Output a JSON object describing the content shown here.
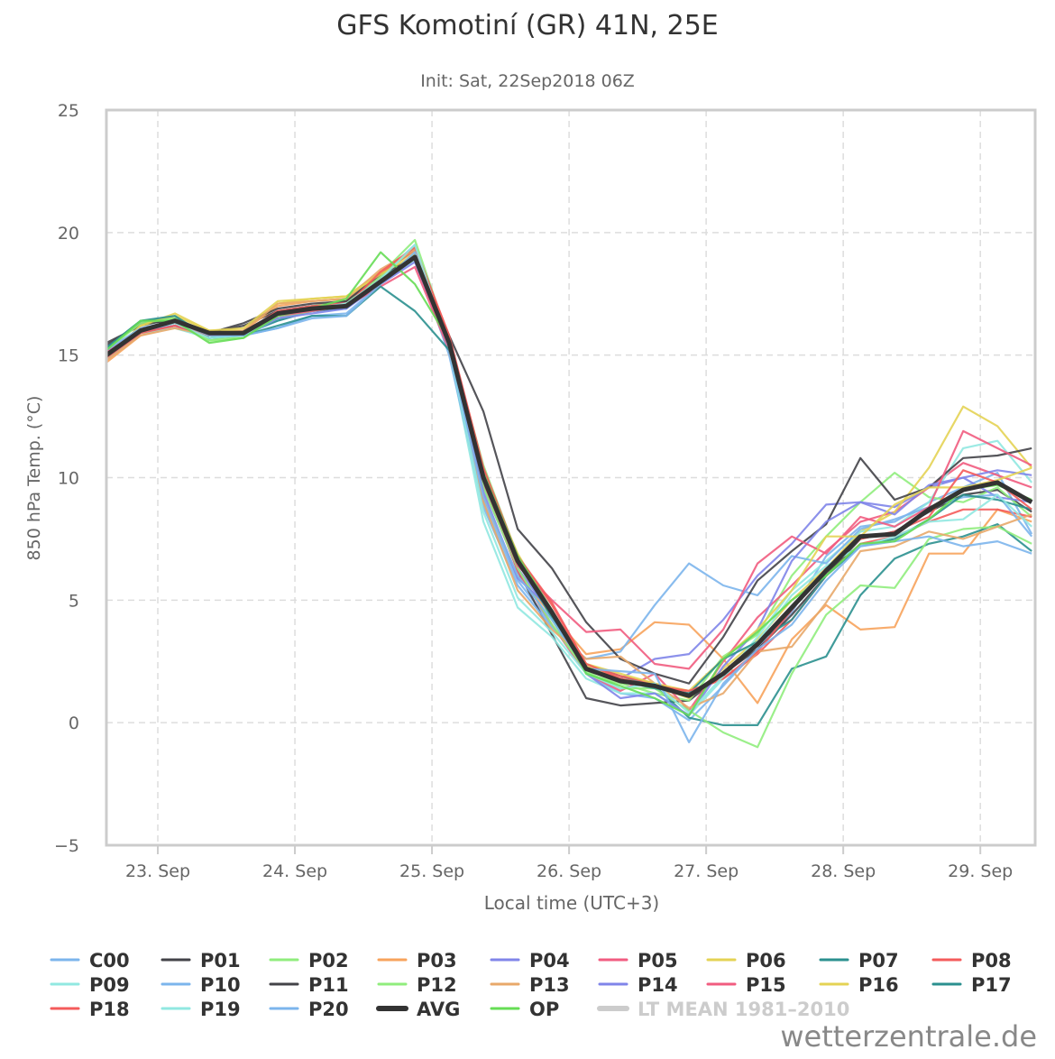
{
  "chart_data": {
    "type": "line",
    "title": "GFS Komotiní (GR) 41N, 25E",
    "subtitle": "Init: Sat, 22Sep2018 06Z",
    "xlabel": "Local time (UTC+3)",
    "ylabel": "850 hPa Temp. (°C)",
    "ylim": [
      -5,
      25
    ],
    "yticks": [
      -5,
      0,
      5,
      10,
      15,
      20,
      25
    ],
    "ytick_labels": [
      "−5",
      "0",
      "5",
      "10",
      "15",
      "20",
      "25"
    ],
    "x_unit": "hours since 23 Sep 00:00 local",
    "xlim": [
      -9,
      153.6
    ],
    "x_start": -9,
    "x_step": 6,
    "xticks": [
      0,
      24,
      48,
      72,
      96,
      120,
      144
    ],
    "xtick_labels": [
      "23. Sep",
      "24. Sep",
      "25. Sep",
      "26. Sep",
      "27. Sep",
      "28. Sep",
      "29. Sep"
    ],
    "grid": true,
    "legend_position": "bottom",
    "series": [
      {
        "name": "C00",
        "color": "#7cb5ec",
        "values": [
          14.8,
          15.9,
          16.2,
          15.7,
          15.8,
          16.4,
          16.8,
          16.9,
          18.2,
          19.5,
          15.4,
          9.0,
          5.8,
          4.0,
          2.0,
          1.2,
          1.0,
          0.1,
          1.5,
          3.0,
          4.5,
          6.8,
          8.0,
          8.2,
          9.0,
          9.6,
          10.2,
          7.7
        ]
      },
      {
        "name": "P01",
        "color": "#434348",
        "values": [
          15.5,
          16.2,
          16.5,
          15.9,
          16.2,
          16.8,
          17.0,
          17.1,
          18.1,
          19.1,
          15.7,
          9.8,
          6.2,
          3.6,
          1.0,
          0.7,
          0.8,
          0.9,
          2.0,
          3.0,
          4.4,
          6.0,
          7.5,
          7.8,
          8.6,
          9.3,
          9.5,
          8.6
        ]
      },
      {
        "name": "P02",
        "color": "#90ed7d",
        "values": [
          15.2,
          16.4,
          16.5,
          15.6,
          15.7,
          16.6,
          17.0,
          17.2,
          18.3,
          19.7,
          15.6,
          10.5,
          6.8,
          4.2,
          2.0,
          1.6,
          1.2,
          0.9,
          2.7,
          3.6,
          6.0,
          7.6,
          9.0,
          10.2,
          9.2,
          9.0,
          9.6,
          8.4
        ]
      },
      {
        "name": "P03",
        "color": "#f7a35c",
        "values": [
          14.7,
          15.8,
          16.2,
          15.9,
          16.0,
          17.0,
          17.2,
          17.3,
          18.4,
          19.3,
          15.4,
          9.2,
          6.0,
          4.4,
          2.8,
          3.0,
          4.1,
          4.0,
          2.6,
          0.8,
          3.4,
          4.8,
          3.8,
          3.9,
          6.9,
          6.9,
          8.7,
          8.2
        ]
      },
      {
        "name": "P04",
        "color": "#8085e9",
        "values": [
          15.1,
          16.0,
          16.3,
          15.8,
          15.9,
          16.6,
          16.8,
          17.0,
          18.0,
          19.0,
          15.5,
          9.6,
          6.3,
          4.4,
          2.2,
          1.8,
          2.6,
          2.8,
          4.2,
          6.0,
          7.3,
          8.9,
          9.0,
          8.8,
          9.6,
          10.0,
          9.2,
          9.0
        ]
      },
      {
        "name": "P05",
        "color": "#f15c80",
        "values": [
          15.0,
          16.1,
          16.3,
          15.9,
          16.0,
          16.7,
          16.9,
          17.2,
          18.2,
          19.0,
          15.4,
          9.8,
          6.2,
          4.0,
          2.0,
          1.3,
          2.0,
          0.5,
          2.5,
          4.3,
          5.6,
          7.0,
          8.2,
          8.6,
          9.6,
          10.6,
          10.1,
          9.6
        ]
      },
      {
        "name": "P06",
        "color": "#e4d354",
        "values": [
          14.9,
          16.2,
          16.6,
          16.0,
          16.0,
          17.1,
          17.3,
          17.4,
          18.4,
          19.2,
          15.6,
          10.2,
          6.7,
          4.6,
          2.3,
          1.8,
          1.5,
          1.0,
          2.2,
          3.4,
          5.0,
          6.3,
          7.8,
          8.6,
          10.4,
          12.9,
          12.1,
          10.4
        ]
      },
      {
        "name": "P07",
        "color": "#2b908f",
        "values": [
          15.3,
          16.4,
          16.4,
          15.7,
          15.9,
          16.4,
          16.8,
          16.9,
          18.1,
          19.1,
          15.5,
          10.0,
          6.6,
          4.4,
          2.4,
          1.9,
          1.5,
          0.2,
          -0.1,
          -0.1,
          2.2,
          2.7,
          5.2,
          6.7,
          7.3,
          7.6,
          8.1,
          7.0
        ]
      },
      {
        "name": "P08",
        "color": "#f45b5b",
        "values": [
          15.0,
          16.0,
          16.2,
          15.8,
          15.9,
          16.8,
          17.0,
          17.1,
          18.3,
          19.3,
          15.8,
          10.4,
          6.8,
          4.8,
          2.4,
          1.9,
          1.6,
          1.2,
          1.8,
          2.8,
          4.2,
          6.0,
          7.3,
          7.6,
          8.2,
          8.7,
          8.7,
          8.4
        ]
      },
      {
        "name": "P09",
        "color": "#91e8e1",
        "values": [
          14.9,
          15.9,
          16.1,
          15.7,
          15.9,
          16.5,
          16.8,
          17.0,
          17.9,
          18.9,
          15.2,
          8.2,
          4.7,
          3.5,
          1.8,
          1.2,
          1.2,
          0.3,
          1.8,
          3.5,
          5.4,
          6.6,
          7.8,
          8.0,
          9.0,
          11.2,
          11.5,
          9.8
        ]
      },
      {
        "name": "P10",
        "color": "#7cb5ec",
        "values": [
          15.1,
          16.1,
          16.3,
          15.8,
          15.8,
          16.1,
          16.6,
          16.7,
          17.9,
          19.0,
          15.0,
          8.8,
          5.6,
          3.9,
          2.6,
          2.9,
          4.8,
          6.5,
          5.6,
          5.2,
          6.8,
          6.5,
          7.9,
          8.3,
          8.8,
          9.2,
          9.3,
          7.6
        ]
      },
      {
        "name": "P11",
        "color": "#434348",
        "values": [
          15.4,
          16.3,
          16.4,
          15.9,
          16.3,
          16.9,
          17.1,
          17.2,
          18.3,
          19.0,
          15.8,
          12.7,
          7.9,
          6.3,
          4.1,
          2.6,
          2.0,
          1.6,
          3.5,
          5.8,
          7.0,
          8.1,
          10.8,
          9.1,
          9.6,
          10.8,
          10.9,
          11.2
        ]
      },
      {
        "name": "P12",
        "color": "#90ed7d",
        "values": [
          15.2,
          16.3,
          16.5,
          15.6,
          15.8,
          16.5,
          16.8,
          17.1,
          18.2,
          19.4,
          15.5,
          9.6,
          6.3,
          4.0,
          2.1,
          1.4,
          1.4,
          0.5,
          -0.4,
          -1.0,
          2.0,
          4.4,
          5.6,
          5.5,
          7.5,
          7.9,
          8.0,
          7.3
        ]
      },
      {
        "name": "P13",
        "color": "#e8a86a",
        "values": [
          14.8,
          15.8,
          16.1,
          15.8,
          16.0,
          17.1,
          17.2,
          17.3,
          18.5,
          19.3,
          15.7,
          9.0,
          5.4,
          3.8,
          2.6,
          2.7,
          1.6,
          0.6,
          1.2,
          2.9,
          3.1,
          4.9,
          7.0,
          7.2,
          7.8,
          7.5,
          8.0,
          8.5
        ]
      },
      {
        "name": "P14",
        "color": "#8085e9",
        "values": [
          15.0,
          16.0,
          16.2,
          15.8,
          15.8,
          16.5,
          16.7,
          16.9,
          17.9,
          18.8,
          15.3,
          9.4,
          5.9,
          4.6,
          2.0,
          1.0,
          1.2,
          0.3,
          2.3,
          3.8,
          6.6,
          8.2,
          9.0,
          8.5,
          9.7,
          10.0,
          10.3,
          10.1
        ]
      },
      {
        "name": "P15",
        "color": "#f15c80",
        "values": [
          15.1,
          16.1,
          16.3,
          15.8,
          15.9,
          16.6,
          16.8,
          17.0,
          17.8,
          18.6,
          15.2,
          9.9,
          6.4,
          5.0,
          3.7,
          3.8,
          2.4,
          2.2,
          3.8,
          6.5,
          7.6,
          6.9,
          8.4,
          8.0,
          8.8,
          11.9,
          11.2,
          10.5
        ]
      },
      {
        "name": "P16",
        "color": "#e4d354",
        "values": [
          14.9,
          16.2,
          16.7,
          16.0,
          16.1,
          17.2,
          17.3,
          17.4,
          18.3,
          19.1,
          15.5,
          10.1,
          6.9,
          4.5,
          2.4,
          2.0,
          1.6,
          1.3,
          2.6,
          3.8,
          5.4,
          7.6,
          7.6,
          8.9,
          9.6,
          9.6,
          9.9,
          10.4
        ]
      },
      {
        "name": "P17",
        "color": "#2b908f",
        "values": [
          15.3,
          16.4,
          16.6,
          15.7,
          15.8,
          16.2,
          16.6,
          16.6,
          17.8,
          16.8,
          15.2,
          10.2,
          6.6,
          4.3,
          2.2,
          1.7,
          1.4,
          1.2,
          2.6,
          3.3,
          4.2,
          6.0,
          7.2,
          7.5,
          8.3,
          9.3,
          9.1,
          8.7
        ]
      },
      {
        "name": "P18",
        "color": "#f45b5b",
        "values": [
          14.9,
          15.9,
          16.2,
          15.8,
          15.9,
          16.8,
          16.9,
          17.0,
          18.4,
          19.4,
          15.8,
          10.3,
          6.8,
          4.9,
          2.4,
          1.8,
          1.5,
          1.3,
          1.8,
          2.9,
          4.6,
          6.3,
          7.5,
          7.8,
          8.4,
          10.3,
          9.8,
          8.7
        ]
      },
      {
        "name": "P19",
        "color": "#91e8e1",
        "values": [
          15.0,
          16.0,
          16.3,
          15.7,
          15.8,
          16.7,
          16.9,
          17.1,
          18.1,
          19.5,
          15.3,
          8.6,
          5.1,
          3.7,
          2.0,
          1.4,
          1.6,
          0.4,
          1.9,
          3.3,
          5.2,
          6.4,
          7.2,
          7.6,
          8.2,
          8.3,
          9.3,
          8.0
        ]
      },
      {
        "name": "P20",
        "color": "#7cb5ec",
        "values": [
          15.2,
          16.1,
          16.4,
          15.8,
          15.8,
          16.1,
          16.5,
          16.6,
          17.9,
          19.2,
          15.3,
          9.2,
          6.0,
          4.2,
          2.2,
          2.1,
          2.0,
          -0.8,
          1.6,
          3.0,
          4.0,
          5.8,
          7.2,
          7.4,
          7.6,
          7.2,
          7.4,
          6.9
        ]
      },
      {
        "name": "AVG",
        "color": "#333333",
        "bold": true,
        "values": [
          15.0,
          16.0,
          16.4,
          15.9,
          15.9,
          16.7,
          16.9,
          17.0,
          18.0,
          19.0,
          15.5,
          10.0,
          6.6,
          4.5,
          2.2,
          1.7,
          1.5,
          1.1,
          2.0,
          3.2,
          4.7,
          6.2,
          7.6,
          7.7,
          8.7,
          9.5,
          9.8,
          9.0
        ]
      },
      {
        "name": "OP",
        "color": "#66dd55",
        "values": [
          15.2,
          16.4,
          16.4,
          15.5,
          15.7,
          16.6,
          16.9,
          17.3,
          19.2,
          17.9,
          15.6,
          10.2,
          6.8,
          4.6,
          2.0,
          1.5,
          1.0,
          0.3,
          2.6,
          3.7,
          5.0,
          6.0,
          7.3,
          7.4,
          8.3,
          9.5,
          9.7,
          9.1
        ]
      },
      {
        "name": "LT MEAN 1981–2010",
        "color": "#cccccc",
        "hidden": true,
        "values": []
      }
    ]
  },
  "watermark": "wetterzentrale.de"
}
